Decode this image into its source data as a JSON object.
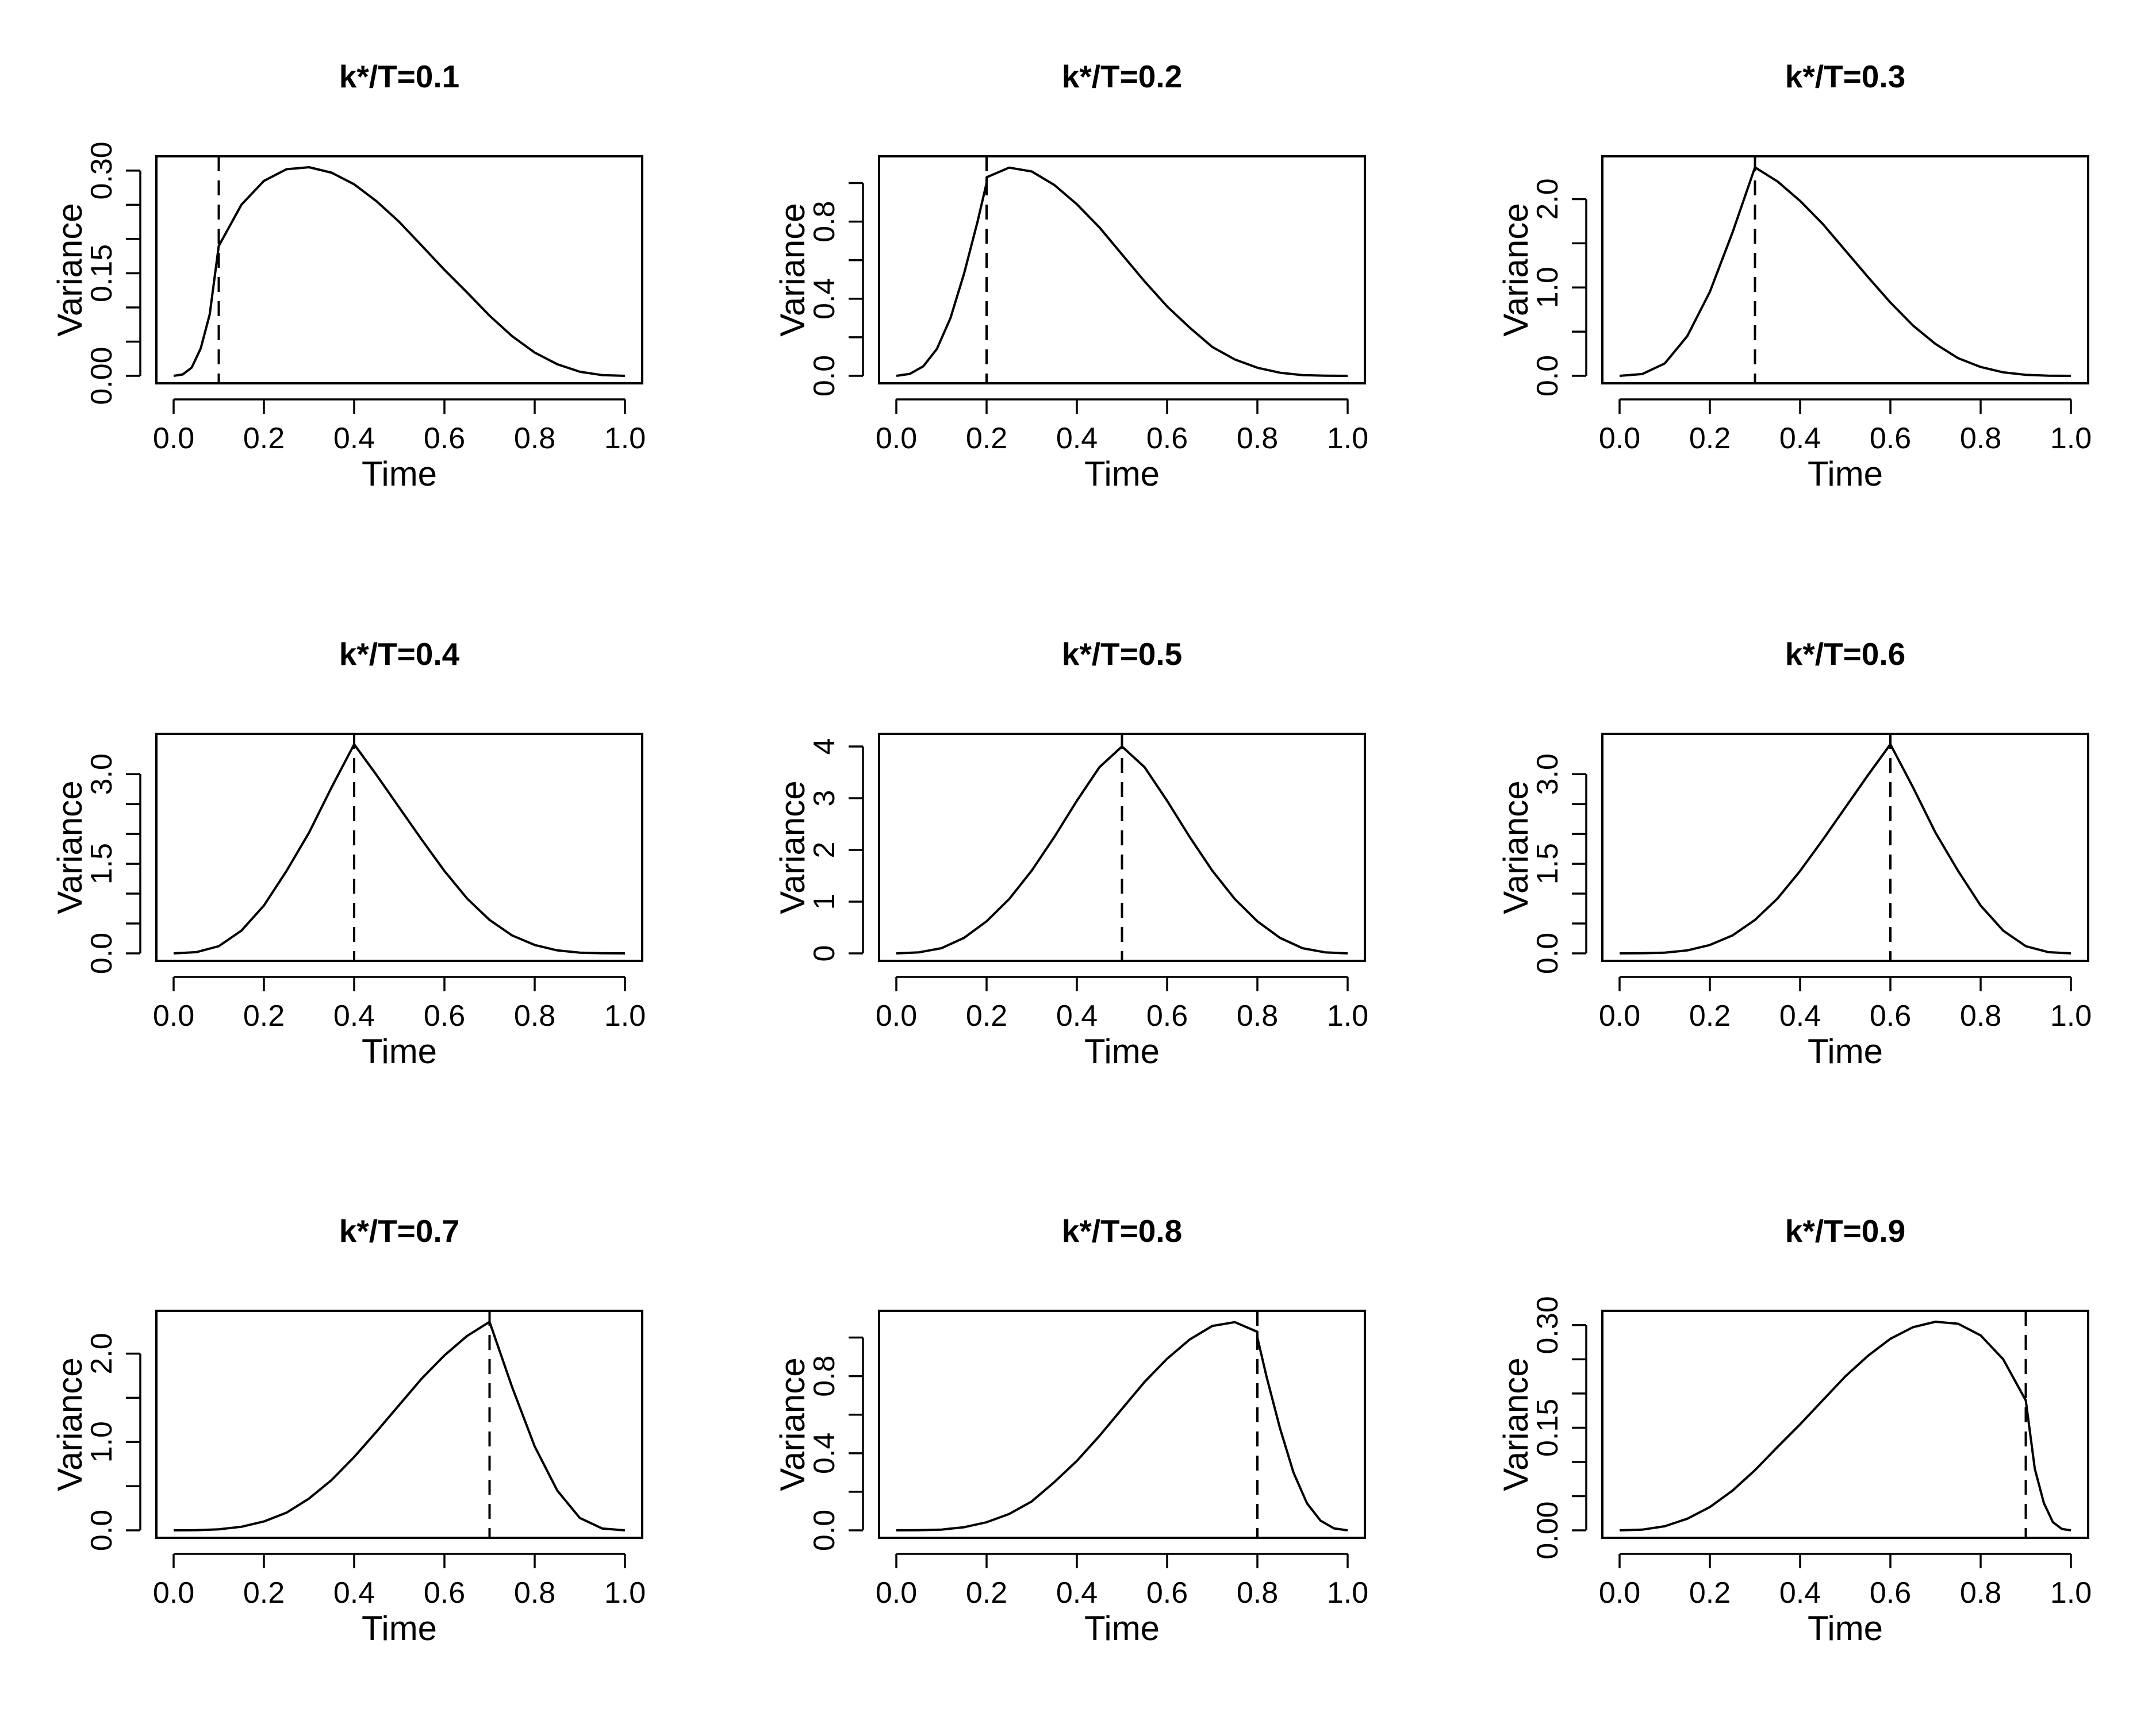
{
  "chart_data": [
    {
      "type": "line",
      "title": "k*/T=0.1",
      "xlabel": "Time",
      "ylabel": "Variance",
      "changepoint": 0.1,
      "xlim": [
        0,
        1
      ],
      "xticks": [
        "0.0",
        "0.2",
        "0.4",
        "0.6",
        "0.8",
        "1.0"
      ],
      "ylim": [
        0,
        0.31
      ],
      "yticks": [
        "0.00",
        "0.15",
        "0.30"
      ],
      "ytick_values": [
        0,
        0.15,
        0.3
      ],
      "ytick_minor": [
        0.05,
        0.1,
        0.2,
        0.25
      ],
      "x": [
        0,
        0.02,
        0.04,
        0.06,
        0.08,
        0.1,
        0.1001,
        0.15,
        0.2,
        0.25,
        0.3,
        0.35,
        0.4,
        0.45,
        0.5,
        0.55,
        0.6,
        0.65,
        0.7,
        0.75,
        0.8,
        0.85,
        0.9,
        0.95,
        1.0
      ],
      "y": [
        0,
        0.002,
        0.012,
        0.04,
        0.09,
        0.19,
        0.19,
        0.25,
        0.285,
        0.302,
        0.305,
        0.297,
        0.28,
        0.255,
        0.225,
        0.19,
        0.155,
        0.122,
        0.088,
        0.058,
        0.034,
        0.017,
        0.006,
        0.001,
        0
      ]
    },
    {
      "type": "line",
      "title": "k*/T=0.2",
      "xlabel": "Time",
      "ylabel": "Variance",
      "changepoint": 0.2,
      "xlim": [
        0,
        1
      ],
      "xticks": [
        "0.0",
        "0.2",
        "0.4",
        "0.6",
        "0.8",
        "1.0"
      ],
      "ylim": [
        0,
        1.1
      ],
      "yticks": [
        "0.0",
        "0.4",
        "0.8"
      ],
      "ytick_values": [
        0,
        0.4,
        0.8
      ],
      "ytick_minor": [
        0.2,
        0.6,
        1.0
      ],
      "x": [
        0,
        0.03,
        0.06,
        0.09,
        0.12,
        0.15,
        0.18,
        0.2,
        0.2001,
        0.25,
        0.3,
        0.35,
        0.4,
        0.45,
        0.5,
        0.55,
        0.6,
        0.65,
        0.7,
        0.75,
        0.8,
        0.85,
        0.9,
        0.95,
        1.0
      ],
      "y": [
        0,
        0.01,
        0.05,
        0.14,
        0.3,
        0.53,
        0.8,
        1.0,
        1.03,
        1.08,
        1.06,
        0.99,
        0.89,
        0.77,
        0.63,
        0.49,
        0.36,
        0.25,
        0.15,
        0.085,
        0.042,
        0.016,
        0.004,
        0.001,
        0
      ]
    },
    {
      "type": "line",
      "title": "k*/T=0.3",
      "xlabel": "Time",
      "ylabel": "Variance",
      "changepoint": 0.3,
      "xlim": [
        0,
        1
      ],
      "xticks": [
        "0.0",
        "0.2",
        "0.4",
        "0.6",
        "0.8",
        "1.0"
      ],
      "ylim": [
        0,
        2.4
      ],
      "yticks": [
        "0.0",
        "1.0",
        "2.0"
      ],
      "ytick_values": [
        0,
        1.0,
        2.0
      ],
      "ytick_minor": [
        0.5,
        1.5
      ],
      "x": [
        0,
        0.05,
        0.1,
        0.15,
        0.2,
        0.25,
        0.3,
        0.35,
        0.4,
        0.45,
        0.5,
        0.55,
        0.6,
        0.65,
        0.7,
        0.75,
        0.8,
        0.85,
        0.9,
        0.95,
        1.0
      ],
      "y": [
        0,
        0.02,
        0.14,
        0.45,
        0.95,
        1.62,
        2.36,
        2.2,
        1.98,
        1.72,
        1.42,
        1.12,
        0.83,
        0.57,
        0.36,
        0.2,
        0.1,
        0.04,
        0.012,
        0.002,
        0
      ]
    },
    {
      "type": "line",
      "title": "k*/T=0.4",
      "xlabel": "Time",
      "ylabel": "Variance",
      "changepoint": 0.4,
      "xlim": [
        0,
        1
      ],
      "xticks": [
        "0.0",
        "0.2",
        "0.4",
        "0.6",
        "0.8",
        "1.0"
      ],
      "ylim": [
        0,
        3.55
      ],
      "yticks": [
        "0.0",
        "1.5",
        "3.0"
      ],
      "ytick_values": [
        0,
        1.5,
        3.0
      ],
      "ytick_minor": [
        0.5,
        1.0,
        2.0,
        2.5
      ],
      "x": [
        0,
        0.05,
        0.1,
        0.15,
        0.2,
        0.25,
        0.3,
        0.35,
        0.4,
        0.45,
        0.5,
        0.55,
        0.6,
        0.65,
        0.7,
        0.75,
        0.8,
        0.85,
        0.9,
        0.95,
        1.0
      ],
      "y": [
        0,
        0.02,
        0.12,
        0.38,
        0.8,
        1.38,
        2.02,
        2.78,
        3.5,
        2.98,
        2.44,
        1.9,
        1.38,
        0.92,
        0.56,
        0.3,
        0.14,
        0.05,
        0.012,
        0.002,
        0
      ]
    },
    {
      "type": "line",
      "title": "k*/T=0.5",
      "xlabel": "Time",
      "ylabel": "Variance",
      "changepoint": 0.5,
      "xlim": [
        0,
        1
      ],
      "xticks": [
        "0.0",
        "0.2",
        "0.4",
        "0.6",
        "0.8",
        "1.0"
      ],
      "ylim": [
        0,
        4.1
      ],
      "yticks": [
        "0",
        "1",
        "2",
        "3",
        "4"
      ],
      "ytick_values": [
        0,
        1,
        2,
        3,
        4
      ],
      "ytick_minor": [],
      "x": [
        0,
        0.05,
        0.1,
        0.15,
        0.2,
        0.25,
        0.3,
        0.35,
        0.4,
        0.45,
        0.5,
        0.55,
        0.6,
        0.65,
        0.7,
        0.75,
        0.8,
        0.85,
        0.9,
        0.95,
        1.0
      ],
      "y": [
        0,
        0.02,
        0.1,
        0.3,
        0.62,
        1.05,
        1.6,
        2.25,
        2.95,
        3.6,
        4.0,
        3.6,
        2.95,
        2.25,
        1.6,
        1.05,
        0.62,
        0.3,
        0.1,
        0.02,
        0
      ]
    },
    {
      "type": "line",
      "title": "k*/T=0.6",
      "xlabel": "Time",
      "ylabel": "Variance",
      "changepoint": 0.6,
      "xlim": [
        0,
        1
      ],
      "xticks": [
        "0.0",
        "0.2",
        "0.4",
        "0.6",
        "0.8",
        "1.0"
      ],
      "ylim": [
        0,
        3.55
      ],
      "yticks": [
        "0.0",
        "1.5",
        "3.0"
      ],
      "ytick_values": [
        0,
        1.5,
        3.0
      ],
      "ytick_minor": [
        0.5,
        1.0,
        2.0,
        2.5
      ],
      "x": [
        0,
        0.05,
        0.1,
        0.15,
        0.2,
        0.25,
        0.3,
        0.35,
        0.4,
        0.45,
        0.5,
        0.55,
        0.6,
        0.65,
        0.7,
        0.75,
        0.8,
        0.85,
        0.9,
        0.95,
        1.0
      ],
      "y": [
        0,
        0.002,
        0.012,
        0.05,
        0.14,
        0.3,
        0.56,
        0.92,
        1.38,
        1.9,
        2.44,
        2.98,
        3.5,
        2.78,
        2.02,
        1.38,
        0.8,
        0.38,
        0.12,
        0.02,
        0
      ]
    },
    {
      "type": "line",
      "title": "k*/T=0.7",
      "xlabel": "Time",
      "ylabel": "Variance",
      "changepoint": 0.7,
      "xlim": [
        0,
        1
      ],
      "xticks": [
        "0.0",
        "0.2",
        "0.4",
        "0.6",
        "0.8",
        "1.0"
      ],
      "ylim": [
        0,
        2.4
      ],
      "yticks": [
        "0.0",
        "1.0",
        "2.0"
      ],
      "ytick_values": [
        0,
        1.0,
        2.0
      ],
      "ytick_minor": [
        0.5,
        1.5
      ],
      "x": [
        0,
        0.05,
        0.1,
        0.15,
        0.2,
        0.25,
        0.3,
        0.35,
        0.4,
        0.45,
        0.5,
        0.55,
        0.6,
        0.65,
        0.7,
        0.75,
        0.8,
        0.85,
        0.9,
        0.95,
        1.0
      ],
      "y": [
        0,
        0.002,
        0.012,
        0.04,
        0.1,
        0.2,
        0.36,
        0.57,
        0.83,
        1.12,
        1.42,
        1.72,
        1.98,
        2.2,
        2.36,
        1.62,
        0.95,
        0.45,
        0.14,
        0.02,
        0
      ]
    },
    {
      "type": "line",
      "title": "k*/T=0.8",
      "xlabel": "Time",
      "ylabel": "Variance",
      "changepoint": 0.8,
      "xlim": [
        0,
        1
      ],
      "xticks": [
        "0.0",
        "0.2",
        "0.4",
        "0.6",
        "0.8",
        "1.0"
      ],
      "ylim": [
        0,
        1.1
      ],
      "yticks": [
        "0.0",
        "0.4",
        "0.8"
      ],
      "ytick_values": [
        0,
        0.4,
        0.8
      ],
      "ytick_minor": [
        0.2,
        0.6,
        1.0
      ],
      "x": [
        0,
        0.05,
        0.1,
        0.15,
        0.2,
        0.25,
        0.3,
        0.35,
        0.4,
        0.45,
        0.5,
        0.55,
        0.6,
        0.65,
        0.7,
        0.75,
        0.7999,
        0.8,
        0.82,
        0.85,
        0.88,
        0.91,
        0.94,
        0.97,
        1.0
      ],
      "y": [
        0,
        0.001,
        0.004,
        0.016,
        0.042,
        0.085,
        0.15,
        0.25,
        0.36,
        0.49,
        0.63,
        0.77,
        0.89,
        0.99,
        1.06,
        1.08,
        1.03,
        1.0,
        0.8,
        0.53,
        0.3,
        0.14,
        0.05,
        0.01,
        0
      ]
    },
    {
      "type": "line",
      "title": "k*/T=0.9",
      "xlabel": "Time",
      "ylabel": "Variance",
      "changepoint": 0.9,
      "xlim": [
        0,
        1
      ],
      "xticks": [
        "0.0",
        "0.2",
        "0.4",
        "0.6",
        "0.8",
        "1.0"
      ],
      "ylim": [
        0,
        0.31
      ],
      "yticks": [
        "0.00",
        "0.15",
        "0.30"
      ],
      "ytick_values": [
        0,
        0.15,
        0.3
      ],
      "ytick_minor": [
        0.05,
        0.1,
        0.2,
        0.25
      ],
      "x": [
        0,
        0.05,
        0.1,
        0.15,
        0.2,
        0.25,
        0.3,
        0.35,
        0.4,
        0.45,
        0.5,
        0.55,
        0.6,
        0.65,
        0.7,
        0.75,
        0.8,
        0.85,
        0.8999,
        0.9,
        0.92,
        0.94,
        0.96,
        0.98,
        1.0
      ],
      "y": [
        0,
        0.001,
        0.006,
        0.017,
        0.034,
        0.058,
        0.088,
        0.122,
        0.155,
        0.19,
        0.225,
        0.255,
        0.28,
        0.297,
        0.305,
        0.302,
        0.285,
        0.25,
        0.19,
        0.19,
        0.09,
        0.04,
        0.012,
        0.002,
        0
      ]
    }
  ]
}
